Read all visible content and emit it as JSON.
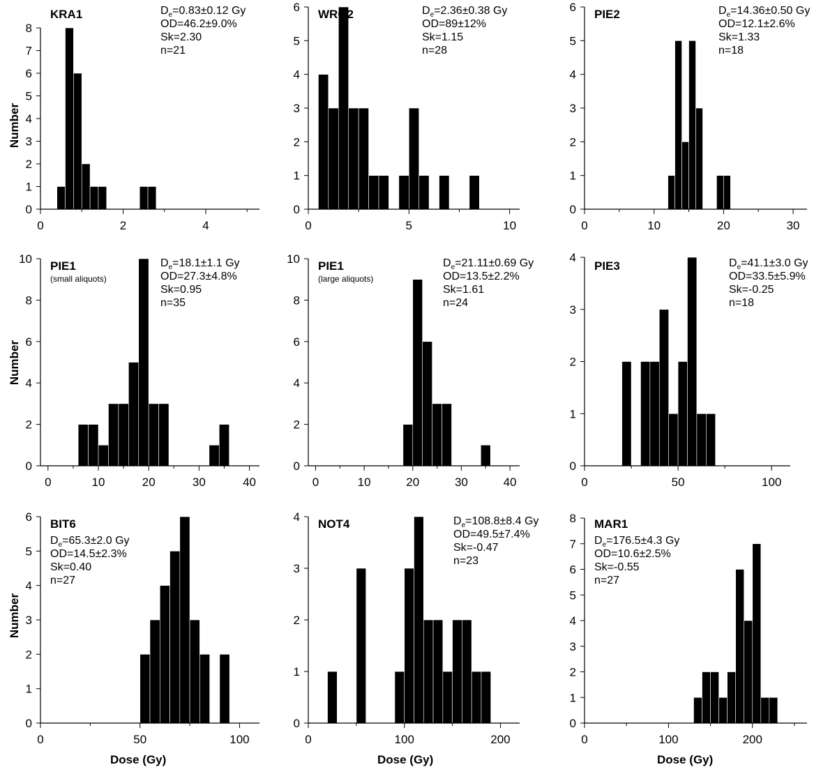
{
  "ylabel": "Number",
  "xlabel": "Dose (Gy)",
  "chart_data": [
    {
      "type": "bar",
      "sample": "KRA1",
      "subtitle": "",
      "stats": {
        "de_value": "=0.83±0.12 Gy",
        "od": "OD=46.2±9.0%",
        "sk": "Sk=2.30",
        "n": "n=21"
      },
      "bin_width": 0.2,
      "bins": [
        [
          0.4,
          1
        ],
        [
          0.6,
          8
        ],
        [
          0.8,
          6
        ],
        [
          1.0,
          2
        ],
        [
          1.2,
          1
        ],
        [
          1.4,
          1
        ],
        [
          2.4,
          1
        ],
        [
          2.6,
          1
        ]
      ],
      "xlim": [
        0,
        5.3
      ],
      "ylim": [
        0,
        8
      ],
      "xticks": [
        0,
        2,
        4
      ],
      "yticks": [
        0,
        1,
        2,
        3,
        4,
        5,
        6,
        7,
        8
      ]
    },
    {
      "type": "bar",
      "sample": "WRO2",
      "subtitle": "",
      "stats": {
        "de_value": "=2.36±0.38 Gy",
        "od": "OD=89±12%",
        "sk": "Sk=1.15",
        "n": "n=28"
      },
      "bin_width": 0.5,
      "bins": [
        [
          0.5,
          4
        ],
        [
          1.0,
          3
        ],
        [
          1.5,
          6
        ],
        [
          2.0,
          3
        ],
        [
          2.5,
          3
        ],
        [
          3.0,
          1
        ],
        [
          3.5,
          1
        ],
        [
          4.5,
          1
        ],
        [
          5.0,
          3
        ],
        [
          5.5,
          1
        ],
        [
          6.5,
          1
        ],
        [
          8.0,
          1
        ]
      ],
      "xlim": [
        0,
        10.5
      ],
      "ylim": [
        0,
        7
      ],
      "xticks": [
        0,
        5,
        10
      ],
      "yticks": [
        0,
        1,
        2,
        3,
        4,
        5,
        6
      ]
    },
    {
      "type": "bar",
      "sample": "PIE2",
      "subtitle": "",
      "stats": {
        "de_value": "=14.36±0.50 Gy",
        "od": "OD=12.1±2.6%",
        "sk": "Sk=1.33",
        "n": "n=18"
      },
      "bin_width": 1,
      "bins": [
        [
          12,
          1
        ],
        [
          13,
          5
        ],
        [
          14,
          2
        ],
        [
          15,
          5
        ],
        [
          16,
          3
        ],
        [
          19,
          1
        ],
        [
          20,
          1
        ]
      ],
      "xlim": [
        0,
        32
      ],
      "ylim": [
        0,
        6
      ],
      "xticks": [
        0,
        10,
        20,
        30
      ],
      "yticks": [
        0,
        1,
        2,
        3,
        4,
        5,
        6
      ]
    },
    {
      "type": "bar",
      "sample": "PIE1",
      "subtitle": "(small aliquots)",
      "stats": {
        "de_value": "=18.1±1.1 Gy",
        "od": "OD=27.3±4.8%",
        "sk": "Sk=0.95",
        "n": "n=35"
      },
      "bin_width": 2,
      "bins": [
        [
          6,
          2
        ],
        [
          8,
          2
        ],
        [
          10,
          1
        ],
        [
          12,
          3
        ],
        [
          14,
          3
        ],
        [
          16,
          5
        ],
        [
          18,
          10
        ],
        [
          20,
          3
        ],
        [
          22,
          3
        ],
        [
          32,
          1
        ],
        [
          34,
          2
        ]
      ],
      "xlim": [
        -1.5,
        42
      ],
      "ylim": [
        0,
        10
      ],
      "xticks": [
        0,
        10,
        20,
        30,
        40
      ],
      "yticks": [
        0,
        2,
        4,
        6,
        8,
        10
      ]
    },
    {
      "type": "bar",
      "sample": "PIE1",
      "subtitle": "(large aliquots)",
      "stats": {
        "de_value": "=21.11±0.69 Gy",
        "od": "OD=13.5±2.2%",
        "sk": "Sk=1.61",
        "n": "n=24"
      },
      "bin_width": 2,
      "bins": [
        [
          18,
          2
        ],
        [
          20,
          9
        ],
        [
          22,
          6
        ],
        [
          24,
          3
        ],
        [
          26,
          3
        ],
        [
          34,
          1
        ]
      ],
      "xlim": [
        -1.5,
        42
      ],
      "ylim": [
        0,
        10
      ],
      "xticks": [
        0,
        10,
        20,
        30,
        40
      ],
      "yticks": [
        0,
        2,
        4,
        6,
        8,
        10
      ]
    },
    {
      "type": "bar",
      "sample": "PIE3",
      "subtitle": "",
      "stats": {
        "de_value": "=41.1±3.0 Gy",
        "od": "OD=33.5±5.9%",
        "sk": "Sk=-0.25",
        "n": "n=18"
      },
      "bin_width": 5,
      "bins": [
        [
          20,
          2
        ],
        [
          30,
          2
        ],
        [
          35,
          2
        ],
        [
          40,
          3
        ],
        [
          45,
          1
        ],
        [
          50,
          2
        ],
        [
          55,
          4
        ],
        [
          60,
          1
        ],
        [
          65,
          1
        ]
      ],
      "xlim": [
        0,
        110
      ],
      "ylim": [
        0,
        4
      ],
      "xticks": [
        0,
        50,
        100
      ],
      "yticks": [
        0,
        1,
        2,
        3,
        4
      ]
    },
    {
      "type": "bar",
      "sample": "BIT6",
      "subtitle": "",
      "stats": {
        "de_value": "=65.3±2.0 Gy",
        "od": "OD=14.5±2.3%",
        "sk": "Sk=0.40",
        "n": "n=27"
      },
      "bin_width": 5,
      "bins": [
        [
          50,
          2
        ],
        [
          55,
          3
        ],
        [
          60,
          4
        ],
        [
          65,
          5
        ],
        [
          70,
          6
        ],
        [
          75,
          3
        ],
        [
          80,
          2
        ],
        [
          90,
          2
        ]
      ],
      "xlim": [
        0,
        110
      ],
      "ylim": [
        0,
        6
      ],
      "xticks": [
        0,
        50,
        100
      ],
      "yticks": [
        0,
        1,
        2,
        3,
        4,
        5,
        6
      ]
    },
    {
      "type": "bar",
      "sample": "NOT4",
      "subtitle": "",
      "stats": {
        "de_value": "=108.8±8.4 Gy",
        "od": "OD=49.5±7.4%",
        "sk": "Sk=-0.47",
        "n": "n=23"
      },
      "bin_width": 10,
      "bins": [
        [
          20,
          1
        ],
        [
          50,
          3
        ],
        [
          90,
          1
        ],
        [
          100,
          3
        ],
        [
          110,
          4
        ],
        [
          120,
          2
        ],
        [
          130,
          2
        ],
        [
          140,
          1
        ],
        [
          150,
          2
        ],
        [
          160,
          2
        ],
        [
          170,
          1
        ],
        [
          180,
          1
        ]
      ],
      "xlim": [
        0,
        220
      ],
      "ylim": [
        0,
        4
      ],
      "xticks": [
        0,
        100,
        200
      ],
      "yticks": [
        0,
        1,
        2,
        3,
        4
      ]
    },
    {
      "type": "bar",
      "sample": "MAR1",
      "subtitle": "",
      "stats": {
        "de_value": "=176.5±4.3 Gy",
        "od": "OD=10.6±2.5%",
        "sk": "Sk=-0.55",
        "n": "n=27"
      },
      "bin_width": 10,
      "bins": [
        [
          130,
          1
        ],
        [
          140,
          2
        ],
        [
          150,
          2
        ],
        [
          160,
          1
        ],
        [
          170,
          2
        ],
        [
          180,
          6
        ],
        [
          190,
          4
        ],
        [
          200,
          7
        ],
        [
          210,
          1
        ],
        [
          220,
          1
        ]
      ],
      "xlim": [
        0,
        265
      ],
      "ylim": [
        0,
        8
      ],
      "xticks": [
        0,
        100,
        200
      ],
      "yticks": [
        0,
        1,
        2,
        3,
        4,
        5,
        6,
        7,
        8
      ]
    }
  ]
}
